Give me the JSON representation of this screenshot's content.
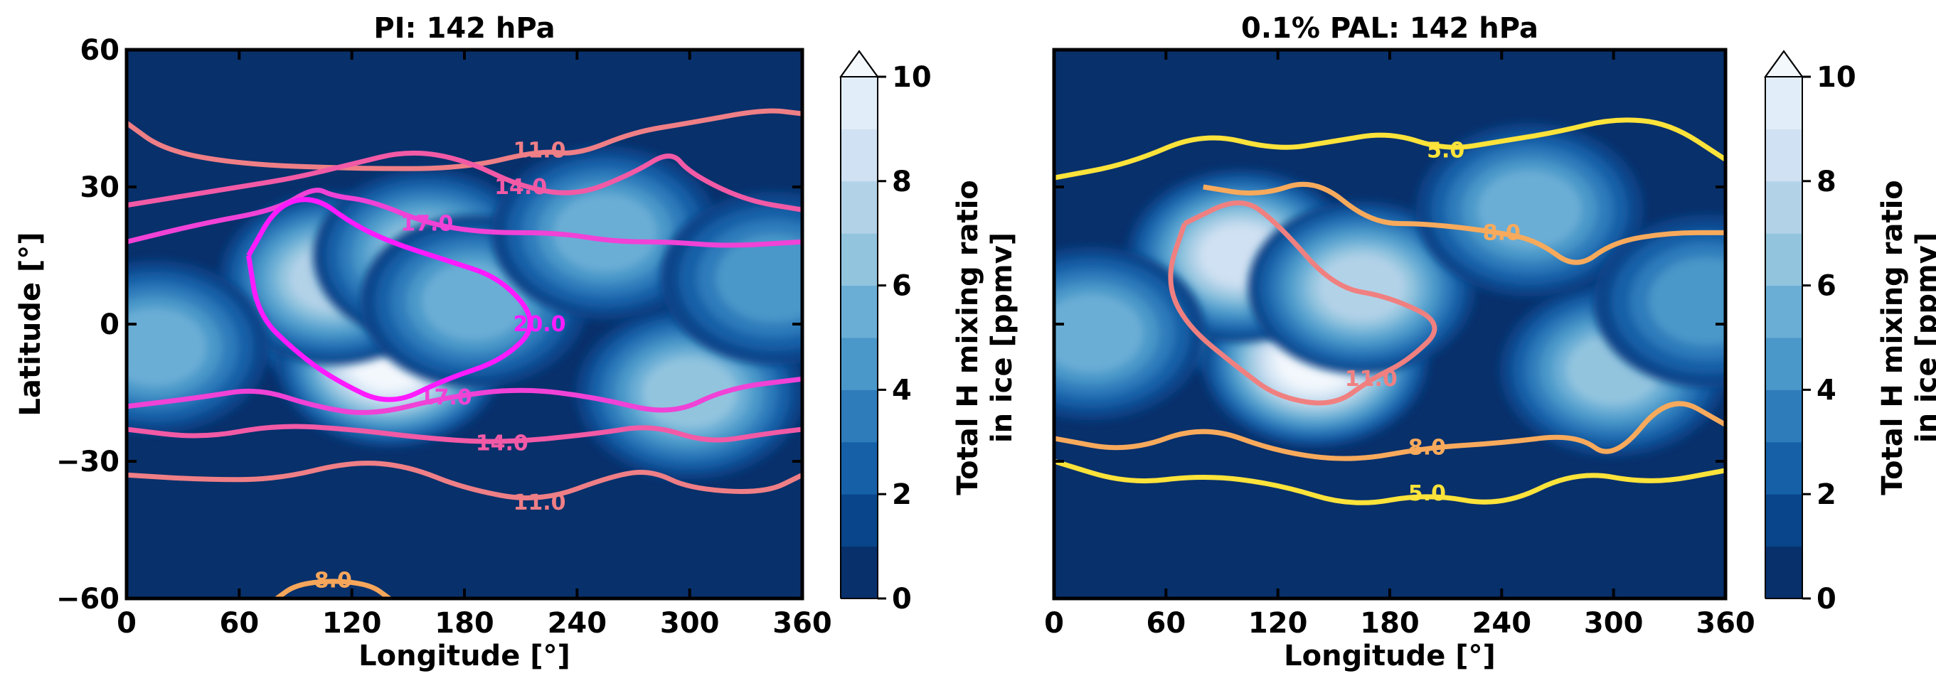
{
  "colors": {
    "ice_levels": [
      "#08306b",
      "#08458a",
      "#1660a8",
      "#2f7cbb",
      "#4a98c9",
      "#6aaed6",
      "#92c4de",
      "#b2d2e8",
      "#cfe1f2",
      "#e1edf8",
      "#f3f8fd"
    ],
    "contour_pi": {
      "11.0": "#ef7f86",
      "14.0": "#f25aa6",
      "17.0": "#f042d6",
      "20.0": "#ff1aff",
      "8.0": "#f6a65a"
    },
    "contour_pal": {
      "5.0": "#fde33a",
      "8.0": "#f8aa5c",
      "11.0": "#f08080"
    }
  },
  "chart_data": [
    {
      "type": "heatmap",
      "title": "PI: 142 hPa",
      "xlabel": "Longitude [$^{\\circ}$]",
      "xlabel_text": "Longitude [°]",
      "ylabel": "Latitude [°]",
      "xlim": [
        0,
        360
      ],
      "ylim": [
        -60,
        60
      ],
      "xticks": [
        "0",
        "60",
        "120",
        "180",
        "240",
        "300",
        "360"
      ],
      "yticks": [
        "60",
        "30",
        "0",
        "−30",
        "−60"
      ],
      "colorbar": {
        "label": [
          "Total H mixing ratio",
          "in ice [ppmv]"
        ],
        "range": [
          0,
          10
        ],
        "levels": [
          0,
          1,
          2,
          3,
          4,
          5,
          6,
          7,
          8,
          9,
          10
        ],
        "ticks": [
          "0",
          "2",
          "4",
          "6",
          "8",
          "10"
        ],
        "extend": "max"
      },
      "ice_blobs": [
        {
          "lon": 125,
          "lat": 2,
          "peak": 10
        },
        {
          "lon": 140,
          "lat": -8,
          "peak": 10
        },
        {
          "lon": 110,
          "lat": 10,
          "peak": 7
        },
        {
          "lon": 160,
          "lat": 15,
          "peak": 6
        },
        {
          "lon": 185,
          "lat": 5,
          "peak": 5
        },
        {
          "lon": 15,
          "lat": -5,
          "peak": 5
        },
        {
          "lon": 300,
          "lat": -15,
          "peak": 6
        },
        {
          "lon": 255,
          "lat": 20,
          "peak": 5
        },
        {
          "lon": 345,
          "lat": 10,
          "peak": 4
        }
      ],
      "contours": [
        {
          "level": "11.0",
          "label_at": [
            230,
            88
          ],
          "points": [
            [
              0,
              44
            ],
            [
              20,
              38
            ],
            [
              60,
              35
            ],
            [
              120,
              34
            ],
            [
              180,
              34
            ],
            [
              220,
              38
            ],
            [
              240,
              37
            ],
            [
              270,
              42
            ],
            [
              300,
              44
            ],
            [
              340,
              47
            ],
            [
              360,
              46
            ]
          ]
        },
        {
          "level": "11.0",
          "label_at": [
            65,
            -35
          ],
          "points": [
            [
              0,
              -33
            ],
            [
              40,
              -34
            ],
            [
              80,
              -34
            ],
            [
              120,
              -30
            ],
            [
              150,
              -31
            ],
            [
              180,
              -36
            ],
            [
              220,
              -39
            ],
            [
              260,
              -33
            ],
            [
              280,
              -32
            ],
            [
              300,
              -36
            ],
            [
              340,
              -37
            ],
            [
              360,
              -33
            ]
          ]
        },
        {
          "level": "14.0",
          "label_at": [
            190,
            74
          ],
          "points": [
            [
              0,
              26
            ],
            [
              30,
              28
            ],
            [
              60,
              30
            ],
            [
              90,
              32
            ],
            [
              120,
              35
            ],
            [
              150,
              38
            ],
            [
              180,
              36
            ],
            [
              210,
              30
            ],
            [
              240,
              28
            ],
            [
              270,
              33
            ],
            [
              290,
              38
            ],
            [
              300,
              33
            ],
            [
              330,
              27
            ],
            [
              360,
              25
            ]
          ]
        },
        {
          "level": "14.0",
          "label_at": [
            200,
            -53
          ],
          "points": [
            [
              0,
              -23
            ],
            [
              40,
              -25
            ],
            [
              80,
              -22
            ],
            [
              120,
              -23
            ],
            [
              160,
              -25
            ],
            [
              200,
              -26
            ],
            [
              250,
              -24
            ],
            [
              280,
              -22
            ],
            [
              310,
              -26
            ],
            [
              340,
              -24
            ],
            [
              360,
              -23
            ]
          ]
        },
        {
          "level": "17.0",
          "label_at": [
            420,
            44
          ],
          "points": [
            [
              0,
              18
            ],
            [
              40,
              22
            ],
            [
              80,
              25
            ],
            [
              100,
              30
            ],
            [
              110,
              28
            ],
            [
              130,
              27
            ],
            [
              160,
              22
            ],
            [
              190,
              20
            ],
            [
              230,
              20
            ],
            [
              260,
              18
            ],
            [
              290,
              18
            ],
            [
              320,
              17
            ],
            [
              360,
              18
            ]
          ]
        },
        {
          "level": "17.0",
          "label_at": [
            380,
            -3
          ],
          "points": [
            [
              0,
              -18
            ],
            [
              40,
              -16
            ],
            [
              70,
              -14
            ],
            [
              100,
              -18
            ],
            [
              130,
              -20
            ],
            [
              170,
              -16
            ],
            [
              210,
              -14
            ],
            [
              250,
              -16
            ],
            [
              290,
              -20
            ],
            [
              320,
              -14
            ],
            [
              360,
              -12
            ]
          ]
        },
        {
          "level": "20.0",
          "label_at": [
            -20,
            20
          ],
          "points": [
            [
              65,
              15
            ],
            [
              80,
              26
            ],
            [
              100,
              28
            ],
            [
              120,
              22
            ],
            [
              140,
              18
            ],
            [
              170,
              14
            ],
            [
              200,
              10
            ],
            [
              220,
              0
            ],
            [
              200,
              -8
            ],
            [
              170,
              -12
            ],
            [
              140,
              -18
            ],
            [
              110,
              -12
            ],
            [
              90,
              -6
            ],
            [
              70,
              2
            ],
            [
              65,
              15
            ]
          ]
        },
        {
          "level": "8.0",
          "label_at": [
            140,
            -12
          ],
          "points": [
            [
              80,
              -60
            ],
            [
              90,
              -57
            ],
            [
              110,
              -56
            ],
            [
              130,
              -57
            ],
            [
              140,
              -60
            ]
          ]
        }
      ]
    },
    {
      "type": "heatmap",
      "title": "0.1% PAL: 142 hPa",
      "xlabel": "Longitude [$^{\\circ}$]",
      "xlabel_text": "Longitude [°]",
      "xlim": [
        0,
        360
      ],
      "ylim": [
        -60,
        60
      ],
      "xticks": [
        "0",
        "60",
        "120",
        "180",
        "240",
        "300",
        "360"
      ],
      "colorbar": {
        "label": [
          "Total H mixing ratio",
          "in ice [ppmv]"
        ],
        "range": [
          0,
          10
        ],
        "levels": [
          0,
          1,
          2,
          3,
          4,
          5,
          6,
          7,
          8,
          9,
          10
        ],
        "ticks": [
          "0",
          "2",
          "4",
          "6",
          "8",
          "10"
        ],
        "extend": "max"
      },
      "ice_blobs": [
        {
          "lon": 115,
          "lat": 5,
          "peak": 10
        },
        {
          "lon": 140,
          "lat": -8,
          "peak": 10
        },
        {
          "lon": 100,
          "lat": 15,
          "peak": 8
        },
        {
          "lon": 165,
          "lat": 8,
          "peak": 7
        },
        {
          "lon": 20,
          "lat": -2,
          "peak": 5
        },
        {
          "lon": 300,
          "lat": -10,
          "peak": 6
        },
        {
          "lon": 255,
          "lat": 25,
          "peak": 5
        },
        {
          "lon": 350,
          "lat": 5,
          "peak": 4
        }
      ],
      "contours": [
        {
          "level": "5.0",
          "label_at": [
            55,
            68
          ],
          "points": [
            [
              0,
              32
            ],
            [
              40,
              35
            ],
            [
              80,
              42
            ],
            [
              120,
              38
            ],
            [
              150,
              40
            ],
            [
              180,
              42
            ],
            [
              210,
              38
            ],
            [
              240,
              40
            ],
            [
              270,
              42
            ],
            [
              300,
              45
            ],
            [
              330,
              44
            ],
            [
              360,
              36
            ]
          ]
        },
        {
          "level": "5.0",
          "label_at": [
            140,
            -68
          ],
          "points": [
            [
              0,
              -30
            ],
            [
              40,
              -35
            ],
            [
              80,
              -33
            ],
            [
              120,
              -35
            ],
            [
              160,
              -40
            ],
            [
              200,
              -37
            ],
            [
              240,
              -40
            ],
            [
              280,
              -32
            ],
            [
              320,
              -35
            ],
            [
              360,
              -32
            ]
          ]
        },
        {
          "level": "8.0",
          "label_at": [
            95,
            -18
          ],
          "points": [
            [
              0,
              -25
            ],
            [
              40,
              -28
            ],
            [
              80,
              -22
            ],
            [
              120,
              -28
            ],
            [
              160,
              -30
            ],
            [
              200,
              -27
            ],
            [
              240,
              -26
            ],
            [
              280,
              -24
            ],
            [
              300,
              -30
            ],
            [
              330,
              -15
            ],
            [
              360,
              -22
            ]
          ]
        },
        {
          "level": "8.0",
          "label_at": [
            -80,
            30
          ],
          "points": [
            [
              80,
              30
            ],
            [
              110,
              28
            ],
            [
              140,
              32
            ],
            [
              170,
              22
            ],
            [
              200,
              22
            ],
            [
              240,
              20
            ],
            [
              260,
              18
            ],
            [
              280,
              12
            ],
            [
              300,
              18
            ],
            [
              330,
              20
            ],
            [
              360,
              20
            ]
          ]
        },
        {
          "level": "11.0",
          "label_at": [
            0,
            0
          ],
          "points": [
            [
              70,
              22
            ],
            [
              100,
              28
            ],
            [
              120,
              22
            ],
            [
              150,
              8
            ],
            [
              180,
              6
            ],
            [
              210,
              0
            ],
            [
              190,
              -8
            ],
            [
              170,
              -12
            ],
            [
              150,
              -18
            ],
            [
              120,
              -16
            ],
            [
              100,
              -10
            ],
            [
              70,
              0
            ],
            [
              60,
              10
            ],
            [
              70,
              22
            ]
          ]
        }
      ]
    }
  ]
}
